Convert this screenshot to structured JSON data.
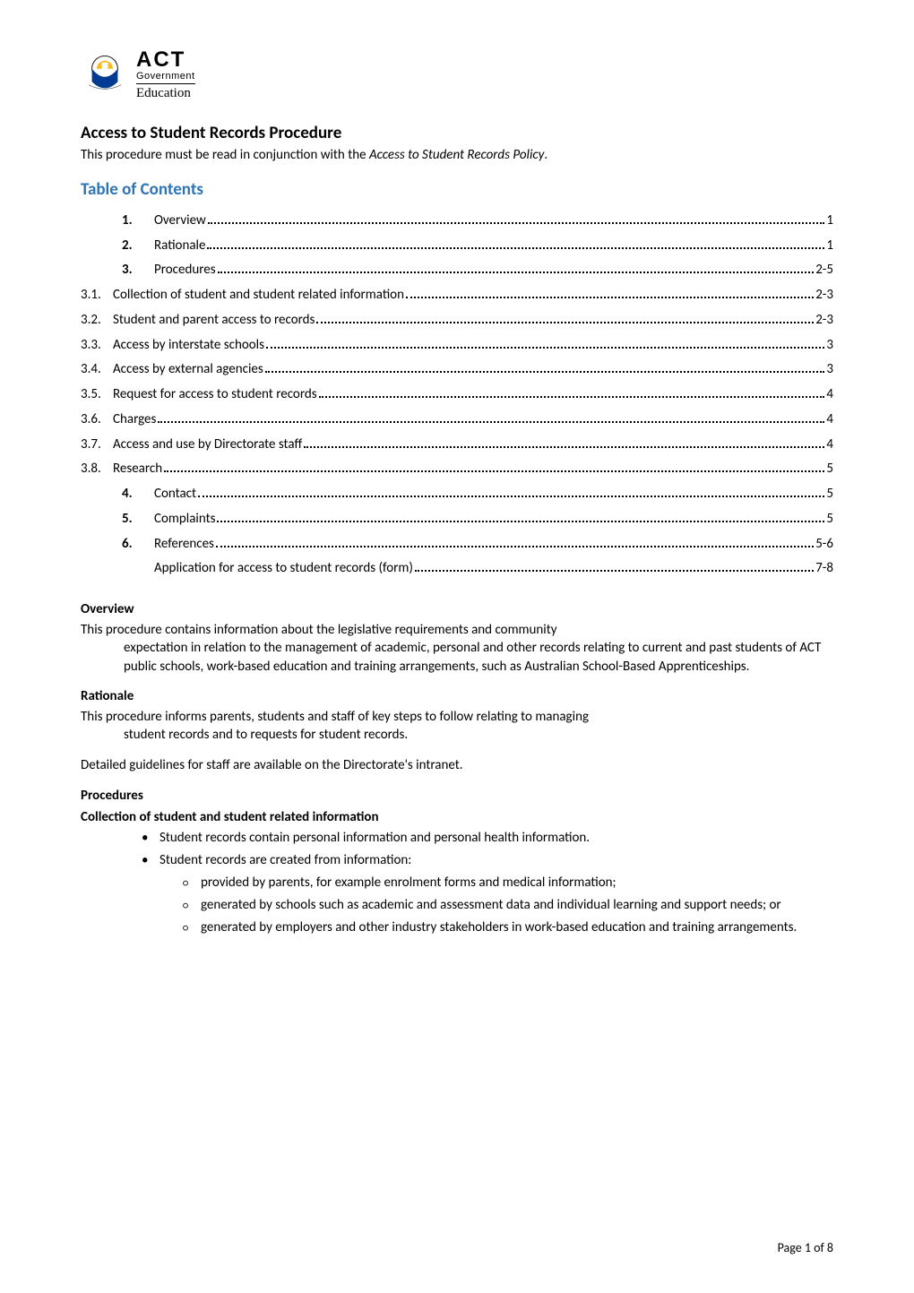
{
  "colors": {
    "heading_blue": "#2e74b5",
    "text": "#000000",
    "bg": "#ffffff",
    "leader": "#000000"
  },
  "typography": {
    "body_family": "Calibri, Arial, sans-serif",
    "body_size_pt": 11,
    "heading_size_pt": 14,
    "toc_heading_size_pt": 14
  },
  "logo": {
    "act": "ACT",
    "gov": "Government",
    "edu": "Education"
  },
  "title": "Access to Student Records Procedure",
  "subtitle_lead": "This procedure must be read in conjunction with the ",
  "subtitle_italic": "Access to Student Records Policy",
  "subtitle_tail": ".",
  "toc_heading": "Table of Contents",
  "toc": [
    {
      "num": "1.",
      "bold": true,
      "indent": 1,
      "label": "Overview",
      "page": "1"
    },
    {
      "num": "2.",
      "bold": true,
      "indent": 1,
      "label": "Rationale",
      "page": "1"
    },
    {
      "num": "3.",
      "bold": true,
      "indent": 1,
      "label": "Procedures",
      "page": "2-5"
    },
    {
      "num": "3.1.",
      "bold": false,
      "indent": 0,
      "label": "Collection of student and student related information",
      "page": "2-3"
    },
    {
      "num": "3.2.",
      "bold": false,
      "indent": 0,
      "label": "Student and parent access to records",
      "page": "2-3"
    },
    {
      "num": "3.3.",
      "bold": false,
      "indent": 0,
      "label": "Access by interstate schools",
      "page": "3"
    },
    {
      "num": "3.4.",
      "bold": false,
      "indent": 0,
      "label": "Access by external agencies",
      "page": "3"
    },
    {
      "num": "3.5.",
      "bold": false,
      "indent": 0,
      "label": "Request for access to student records",
      "page": "4"
    },
    {
      "num": "3.6.",
      "bold": false,
      "indent": 0,
      "label": "Charges",
      "page": "4"
    },
    {
      "num": "3.7.",
      "bold": false,
      "indent": 0,
      "label": "Access and use by Directorate staff",
      "page": "4"
    },
    {
      "num": "3.8.",
      "bold": false,
      "indent": 0,
      "label": "Research",
      "page": "5"
    },
    {
      "num": "4.",
      "bold": true,
      "indent": 1,
      "label": "Contact",
      "page": "5"
    },
    {
      "num": "5.",
      "bold": true,
      "indent": 1,
      "label": "Complaints",
      "page": "5"
    },
    {
      "num": "6.",
      "bold": true,
      "indent": 1,
      "label": "References",
      "page": "5-6"
    },
    {
      "num": "",
      "bold": false,
      "indent": 1,
      "label": "Application for access to student records (form)",
      "page": "7-8"
    }
  ],
  "sections": {
    "overview": {
      "heading": "Overview",
      "para_lead": "This procedure contains information about the legislative requirements and community ",
      "para_cont": "expectation in relation to the management of academic, personal and other records relating to current and past students of ACT public schools, work-based education and training arrangements, such as Australian School-Based Apprenticeships."
    },
    "rationale": {
      "heading": "Rationale",
      "para1_lead": "This procedure informs parents, students and staff of key steps to follow relating to managing ",
      "para1_cont": "student records and to requests for student records.",
      "para2": "Detailed guidelines for staff are available on the Directorate's intranet."
    },
    "procedures": {
      "heading": "Procedures",
      "subheading": "Collection of student and student related information",
      "bullets_l1": [
        "Student records contain personal information and personal health information.",
        "Student records are created from information:"
      ],
      "bullets_l2": [
        "provided by parents, for example enrolment forms and medical information;",
        "generated by schools such as academic and assessment data and individual learning and support needs; or",
        "generated by employers and other industry stakeholders in work-based education and training arrangements."
      ]
    }
  },
  "footer": {
    "label": "Page 1 of 8"
  }
}
